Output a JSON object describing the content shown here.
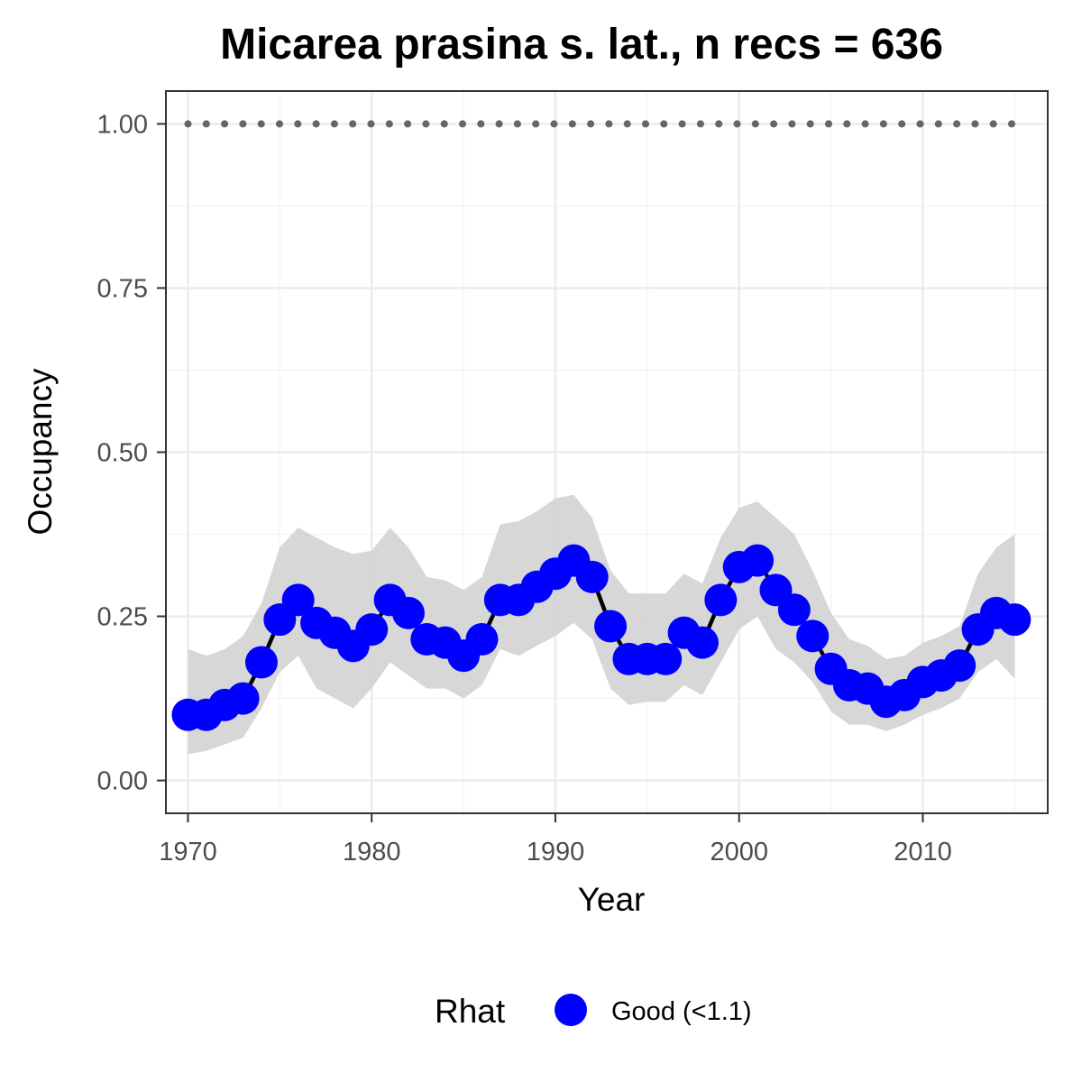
{
  "chart_data": {
    "type": "line",
    "title": "Micarea prasina s. lat., n recs = 636",
    "xlabel": "Year",
    "ylabel": "Occupancy",
    "xlim": [
      1968.8,
      2016.8
    ],
    "ylim": [
      -0.05,
      1.05
    ],
    "x_ticks": [
      1970,
      1980,
      1990,
      2000,
      2010
    ],
    "y_ticks": [
      0.0,
      0.25,
      0.5,
      0.75,
      1.0
    ],
    "y_tick_labels": [
      "0.00",
      "0.25",
      "0.50",
      "0.75",
      "1.00"
    ],
    "grid": true,
    "legend": {
      "position": "bottom",
      "title": "Rhat",
      "entries": [
        {
          "label": "Good (<1.1)",
          "color": "#0000ff"
        }
      ]
    },
    "colors": {
      "points": "#0000ff",
      "line": "#000000",
      "ribbon": "#d3d3d3",
      "reference": "#666666"
    },
    "x": [
      1970,
      1971,
      1972,
      1973,
      1974,
      1975,
      1976,
      1977,
      1978,
      1979,
      1980,
      1981,
      1982,
      1983,
      1984,
      1985,
      1986,
      1987,
      1988,
      1989,
      1990,
      1991,
      1992,
      1993,
      1994,
      1995,
      1996,
      1997,
      1998,
      1999,
      2000,
      2001,
      2002,
      2003,
      2004,
      2005,
      2006,
      2007,
      2008,
      2009,
      2010,
      2011,
      2012,
      2013,
      2014,
      2015
    ],
    "series": [
      {
        "values": [
          0.1,
          0.1,
          0.115,
          0.125,
          0.18,
          0.245,
          0.275,
          0.24,
          0.225,
          0.205,
          0.23,
          0.275,
          0.255,
          0.215,
          0.21,
          0.19,
          0.215,
          0.275,
          0.275,
          0.295,
          0.315,
          0.335,
          0.31,
          0.235,
          0.185,
          0.185,
          0.185,
          0.225,
          0.21,
          0.275,
          0.325,
          0.335,
          0.29,
          0.26,
          0.22,
          0.17,
          0.145,
          0.14,
          0.12,
          0.13,
          0.15,
          0.16,
          0.175,
          0.23,
          0.255,
          0.245
        ],
        "lower": [
          0.04,
          0.045,
          0.055,
          0.065,
          0.11,
          0.165,
          0.19,
          0.14,
          0.125,
          0.11,
          0.14,
          0.18,
          0.16,
          0.14,
          0.14,
          0.125,
          0.145,
          0.2,
          0.19,
          0.205,
          0.22,
          0.24,
          0.215,
          0.14,
          0.115,
          0.12,
          0.12,
          0.145,
          0.13,
          0.18,
          0.23,
          0.25,
          0.2,
          0.18,
          0.15,
          0.105,
          0.085,
          0.085,
          0.075,
          0.085,
          0.1,
          0.11,
          0.125,
          0.165,
          0.185,
          0.155
        ],
        "upper": [
          0.2,
          0.19,
          0.2,
          0.22,
          0.27,
          0.355,
          0.385,
          0.37,
          0.355,
          0.345,
          0.35,
          0.385,
          0.355,
          0.31,
          0.305,
          0.29,
          0.31,
          0.39,
          0.395,
          0.41,
          0.43,
          0.435,
          0.4,
          0.32,
          0.285,
          0.285,
          0.285,
          0.315,
          0.3,
          0.37,
          0.415,
          0.425,
          0.4,
          0.375,
          0.32,
          0.255,
          0.215,
          0.205,
          0.185,
          0.19,
          0.21,
          0.22,
          0.235,
          0.315,
          0.355,
          0.375
        ]
      }
    ],
    "reference_line": {
      "y": 1.0,
      "style": "dotted"
    }
  }
}
